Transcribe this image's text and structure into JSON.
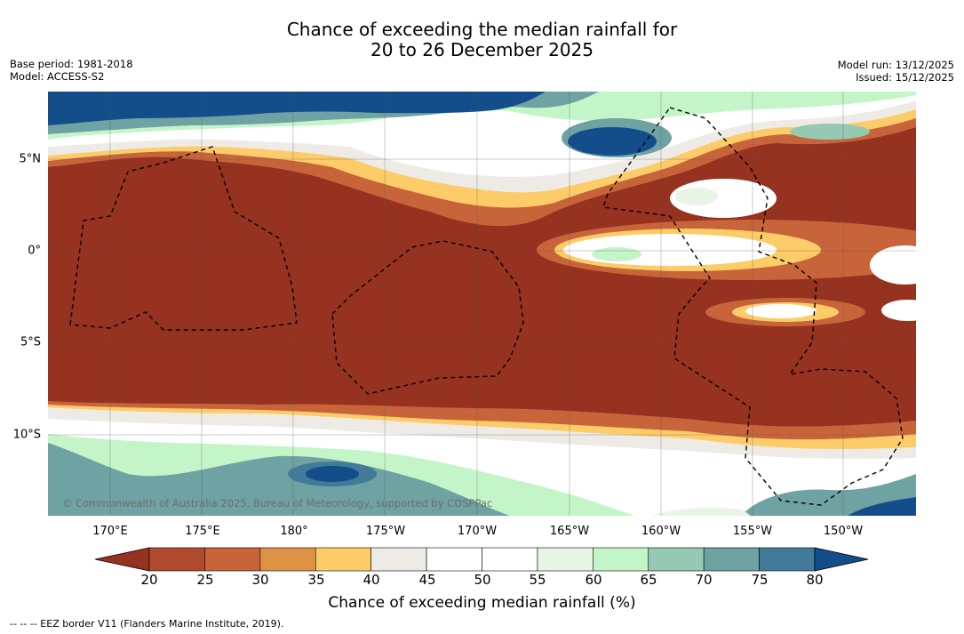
{
  "title": {
    "line1": "Chance of exceeding the median rainfall for",
    "line2": "20 to 26 December 2025"
  },
  "meta_left": {
    "base_period": "Base period: 1981-2018",
    "model": "Model: ACCESS-S2"
  },
  "meta_right": {
    "model_run": "Model run: 13/12/2025",
    "issued": "Issued: 15/12/2025"
  },
  "map": {
    "lon_labels": [
      "170°E",
      "175°E",
      "180°",
      "175°W",
      "170°W",
      "165°W",
      "160°W",
      "155°W",
      "150°W"
    ],
    "lat_labels": [
      "5°N",
      "0°",
      "5°S",
      "10°S"
    ],
    "copyright": "© Commonwealth of Australia 2025, Bureau of Meteorology, supported by COSPPac"
  },
  "colorbar": {
    "ticks": [
      "20",
      "25",
      "30",
      "35",
      "40",
      "45",
      "50",
      "55",
      "60",
      "65",
      "70",
      "75",
      "80"
    ],
    "colors": [
      "#963220",
      "#b04a2c",
      "#c8643a",
      "#de9245",
      "#fccc68",
      "#eeebe7",
      "#ffffff",
      "#ffffff",
      "#e8f5e6",
      "#c4f5c8",
      "#96c9b4",
      "#6ea2a3",
      "#427a99",
      "#134e8b"
    ],
    "title": "Chance of exceeding median rainfall (%)"
  },
  "footnote": "--  --  -- EEZ border V11 (Flanders Marine Institute, 2019)."
}
